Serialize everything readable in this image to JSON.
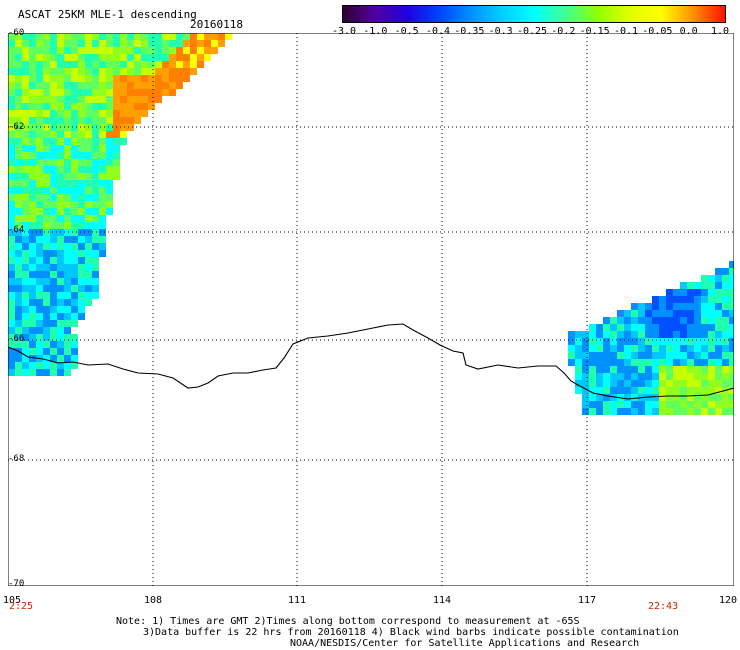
{
  "header": {
    "title": "ASCAT 25KM MLE-1 descending",
    "date": "20160118"
  },
  "colorbar": {
    "labels": [
      "-3.0",
      "-1.0",
      "-0.5",
      "-0.4",
      "-0.35",
      "-0.3",
      "-0.25",
      "-0.2",
      "-0.15",
      "-0.1",
      "-0.05",
      "0.0",
      "1.0"
    ],
    "colors": [
      "#300030",
      "#5000a0",
      "#2000e0",
      "#0040ff",
      "#0090ff",
      "#00d0ff",
      "#00ffff",
      "#40ff90",
      "#90ff00",
      "#e0ff00",
      "#ffff00",
      "#ff9000",
      "#ff1000"
    ]
  },
  "lat_labels": [
    "-60",
    "-62",
    "-64",
    "-66",
    "-68",
    "-70"
  ],
  "lon_labels": [
    "105",
    "108",
    "111",
    "114",
    "117",
    "120"
  ],
  "times": {
    "start": "2:25",
    "end": "22:43"
  },
  "notes": {
    "line1": "Note: 1) Times are GMT 2)Times along bottom correspond to measurement at -65S",
    "line2": "3)Data buffer is 22 hrs from 20160118 4) Black wind barbs indicate possible contamination",
    "line3": "NOAA/NESDIS/Center for Satellite Applications and Research"
  }
}
